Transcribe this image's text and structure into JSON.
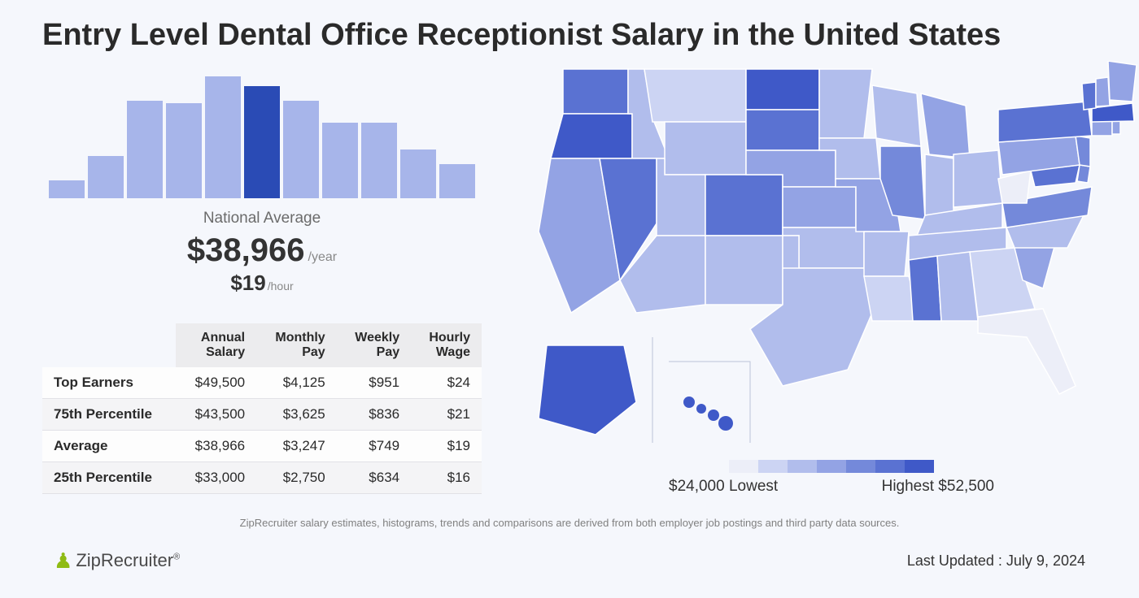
{
  "title": "Entry Level Dental Office Receptionist Salary in the United States",
  "histogram": {
    "type": "histogram",
    "bar_heights_pct": [
      15,
      35,
      80,
      78,
      100,
      92,
      80,
      62,
      62,
      40,
      28
    ],
    "highlight_index": 5,
    "bar_color": "#a7b5ea",
    "bar_highlight_color": "#2a4bb5",
    "national_avg_label": "National Average",
    "annual": "$38,966",
    "annual_suffix": "/year",
    "hourly": "$19",
    "hourly_suffix": "/hour"
  },
  "table": {
    "columns": [
      "",
      "Annual\nSalary",
      "Monthly\nPay",
      "Weekly\nPay",
      "Hourly\nWage"
    ],
    "rows": [
      [
        "Top Earners",
        "$49,500",
        "$4,125",
        "$951",
        "$24"
      ],
      [
        "75th Percentile",
        "$43,500",
        "$3,625",
        "$836",
        "$21"
      ],
      [
        "Average",
        "$38,966",
        "$3,247",
        "$749",
        "$19"
      ],
      [
        "25th Percentile",
        "$33,000",
        "$2,750",
        "$634",
        "$16"
      ]
    ]
  },
  "map": {
    "type": "choropleth",
    "palette": [
      "#eceef8",
      "#ccd4f3",
      "#b1bdec",
      "#93a3e4",
      "#7489da",
      "#5a72d2",
      "#3f59c8"
    ],
    "lowest_label": "$24,000 Lowest",
    "highest_label": "Highest $52,500",
    "border_color": "#ffffff"
  },
  "disclaimer": "ZipRecruiter salary estimates, histograms, trends and comparisons are derived from both employer job postings and third party data sources.",
  "brand": "ZipRecruiter",
  "updated": "Last Updated : July 9, 2024"
}
